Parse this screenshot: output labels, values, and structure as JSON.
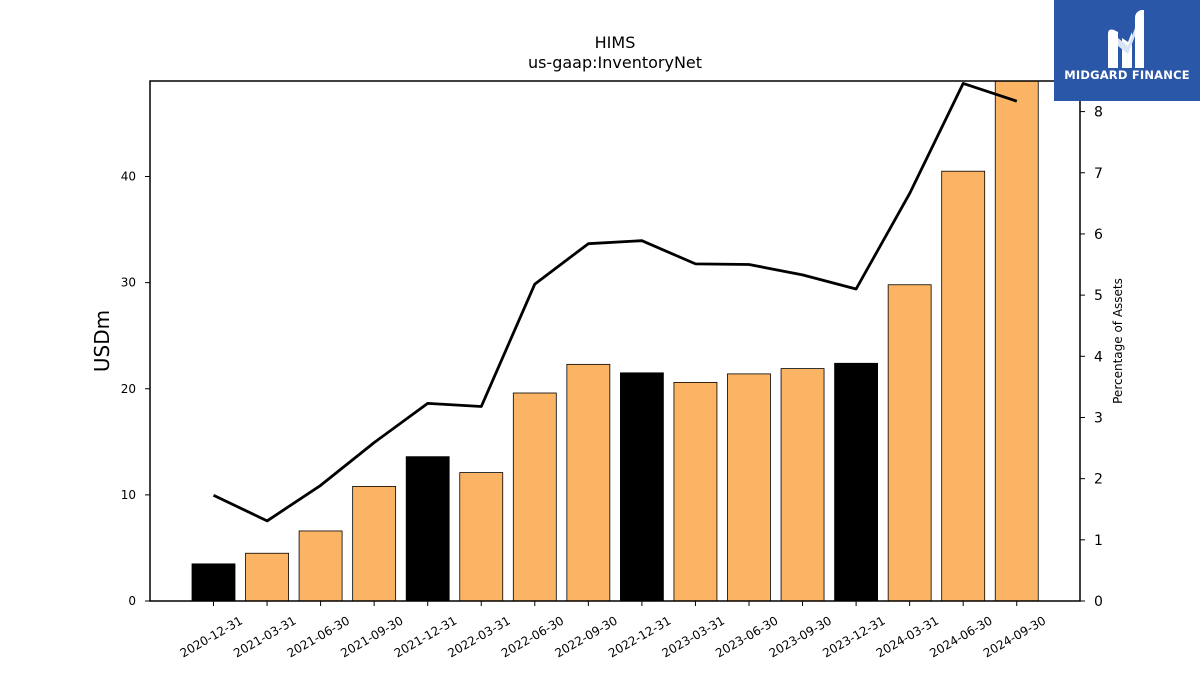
{
  "chart_data": {
    "type": "bar",
    "title": "HIMS",
    "subtitle": "us-gaap:InventoryNet",
    "ylabel": "USDm",
    "y2label": "Percentage of Assets",
    "ylim": [
      0,
      49
    ],
    "y2lim": [
      0,
      8.5
    ],
    "yticks": [
      0,
      10,
      20,
      30,
      40
    ],
    "y2ticks": [
      0,
      1,
      2,
      3,
      4,
      5,
      6,
      7,
      8
    ],
    "categories": [
      "2020-12-31",
      "2021-03-31",
      "2021-06-30",
      "2021-09-30",
      "2021-12-31",
      "2022-03-31",
      "2022-06-30",
      "2022-09-30",
      "2022-12-31",
      "2023-03-31",
      "2023-06-30",
      "2023-09-30",
      "2023-12-31",
      "2024-03-31",
      "2024-06-30",
      "2024-09-30"
    ],
    "values": [
      3.5,
      4.5,
      6.6,
      10.8,
      13.6,
      12.1,
      19.6,
      22.3,
      21.5,
      20.6,
      21.4,
      21.9,
      22.4,
      29.8,
      40.5,
      49.0
    ],
    "bar_colors": [
      "#000000",
      "#fbb464",
      "#fbb464",
      "#fbb464",
      "#000000",
      "#fbb464",
      "#fbb464",
      "#fbb464",
      "#000000",
      "#fbb464",
      "#fbb464",
      "#fbb464",
      "#000000",
      "#fbb464",
      "#fbb464",
      "#fbb464"
    ],
    "line_values": [
      1.73,
      1.31,
      1.89,
      2.59,
      3.23,
      3.18,
      5.18,
      5.84,
      5.89,
      5.51,
      5.5,
      5.33,
      5.1,
      6.66,
      8.46,
      8.17
    ],
    "line_color": "#000000",
    "grid": false
  },
  "logo": {
    "text": "MIDGARD FINANCE",
    "icon": "midgard-logo-icon",
    "color": "#2b57a9"
  }
}
